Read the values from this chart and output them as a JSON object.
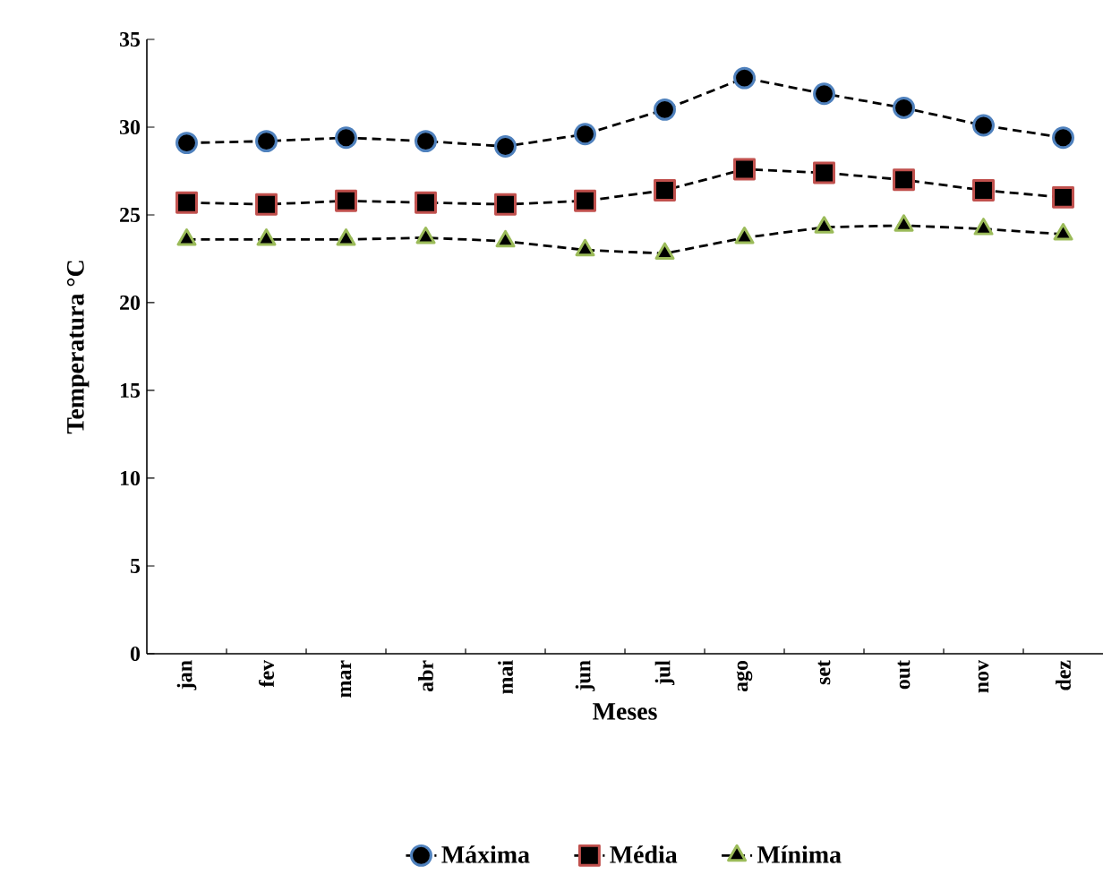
{
  "chart_data": {
    "type": "line",
    "xlabel": "Meses",
    "ylabel": "Temperatura °C",
    "categories": [
      "jan",
      "fev",
      "mar",
      "abr",
      "mai",
      "jun",
      "jul",
      "ago",
      "set",
      "out",
      "nov",
      "dez"
    ],
    "ylim": [
      0,
      35
    ],
    "yticks": [
      0,
      5,
      10,
      15,
      20,
      25,
      30,
      35
    ],
    "grid": false,
    "legend": "bottom",
    "line_style": "dashed",
    "series": [
      {
        "name": "Máxima",
        "color": "#4f81bd",
        "marker": "circle",
        "values": [
          29.1,
          29.2,
          29.4,
          29.2,
          28.9,
          29.6,
          31.0,
          32.8,
          31.9,
          31.1,
          30.1,
          29.4
        ]
      },
      {
        "name": "Média",
        "color": "#c0504d",
        "marker": "square",
        "values": [
          25.7,
          25.6,
          25.8,
          25.7,
          25.6,
          25.8,
          26.4,
          27.6,
          27.4,
          27.0,
          26.4,
          26.0
        ]
      },
      {
        "name": "Mínima",
        "color": "#9bbb59",
        "marker": "triangle",
        "values": [
          23.6,
          23.6,
          23.6,
          23.7,
          23.5,
          23.0,
          22.8,
          23.7,
          24.3,
          24.4,
          24.2,
          23.9
        ]
      }
    ]
  }
}
